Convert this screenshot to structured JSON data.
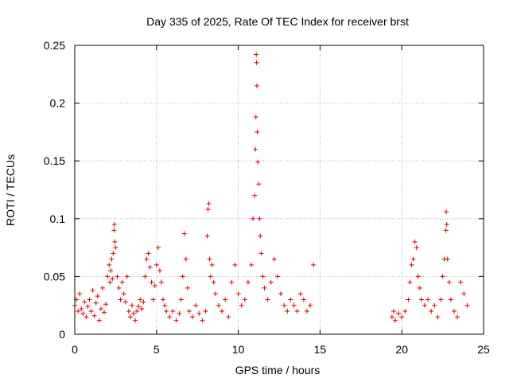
{
  "chart_data": {
    "type": "scatter",
    "title": "Day 335 of 2025, Rate Of TEC Index for receiver brst",
    "xlabel": "GPS time / hours",
    "ylabel": "ROTI / TECUs",
    "xlim": [
      0,
      25
    ],
    "ylim": [
      0,
      0.25
    ],
    "x_ticks": [
      {
        "value": 0,
        "label": "0"
      },
      {
        "value": 5,
        "label": "5"
      },
      {
        "value": 10,
        "label": "10"
      },
      {
        "value": 15,
        "label": "15"
      },
      {
        "value": 20,
        "label": "20"
      },
      {
        "value": 25,
        "label": "25"
      }
    ],
    "y_ticks": [
      {
        "value": 0,
        "label": "0"
      },
      {
        "value": 0.05,
        "label": "0.05"
      },
      {
        "value": 0.1,
        "label": "0.1"
      },
      {
        "value": 0.15,
        "label": "0.15"
      },
      {
        "value": 0.2,
        "label": "0.2"
      },
      {
        "value": 0.25,
        "label": "0.25"
      }
    ],
    "grid": true,
    "marker": "+",
    "marker_color": "#e00000",
    "series": [
      {
        "name": "ROTI",
        "points": [
          [
            0.0,
            0.025
          ],
          [
            0.1,
            0.03
          ],
          [
            0.2,
            0.02
          ],
          [
            0.3,
            0.035
          ],
          [
            0.4,
            0.022
          ],
          [
            0.5,
            0.018
          ],
          [
            0.6,
            0.028
          ],
          [
            0.7,
            0.015
          ],
          [
            0.8,
            0.024
          ],
          [
            0.9,
            0.03
          ],
          [
            1.0,
            0.02
          ],
          [
            1.1,
            0.038
          ],
          [
            1.2,
            0.016
          ],
          [
            1.3,
            0.027
          ],
          [
            1.4,
            0.033
          ],
          [
            1.5,
            0.012
          ],
          [
            1.6,
            0.022
          ],
          [
            1.7,
            0.04
          ],
          [
            1.8,
            0.019
          ],
          [
            1.9,
            0.026
          ],
          [
            2.0,
            0.05
          ],
          [
            2.1,
            0.06
          ],
          [
            2.15,
            0.045
          ],
          [
            2.2,
            0.055
          ],
          [
            2.25,
            0.065
          ],
          [
            2.3,
            0.048
          ],
          [
            2.35,
            0.07
          ],
          [
            2.4,
            0.09
          ],
          [
            2.42,
            0.095
          ],
          [
            2.45,
            0.08
          ],
          [
            2.5,
            0.075
          ],
          [
            2.6,
            0.05
          ],
          [
            2.7,
            0.04
          ],
          [
            2.8,
            0.03
          ],
          [
            2.9,
            0.045
          ],
          [
            3.0,
            0.035
          ],
          [
            3.1,
            0.028
          ],
          [
            3.2,
            0.05
          ],
          [
            3.3,
            0.02
          ],
          [
            3.4,
            0.015
          ],
          [
            3.5,
            0.025
          ],
          [
            3.6,
            0.018
          ],
          [
            3.7,
            0.012
          ],
          [
            3.8,
            0.02
          ],
          [
            3.9,
            0.024
          ],
          [
            4.0,
            0.03
          ],
          [
            4.1,
            0.022
          ],
          [
            4.2,
            0.028
          ],
          [
            4.3,
            0.05
          ],
          [
            4.4,
            0.065
          ],
          [
            4.5,
            0.07
          ],
          [
            4.6,
            0.058
          ],
          [
            4.7,
            0.045
          ],
          [
            4.8,
            0.03
          ],
          [
            4.9,
            0.042
          ],
          [
            5.0,
            0.06
          ],
          [
            5.1,
            0.075
          ],
          [
            5.2,
            0.055
          ],
          [
            5.3,
            0.045
          ],
          [
            5.4,
            0.03
          ],
          [
            5.5,
            0.025
          ],
          [
            5.6,
            0.02
          ],
          [
            5.8,
            0.015
          ],
          [
            6.0,
            0.02
          ],
          [
            6.2,
            0.012
          ],
          [
            6.4,
            0.018
          ],
          [
            6.5,
            0.03
          ],
          [
            6.6,
            0.05
          ],
          [
            6.7,
            0.087
          ],
          [
            6.8,
            0.065
          ],
          [
            6.9,
            0.04
          ],
          [
            7.0,
            0.02
          ],
          [
            7.2,
            0.015
          ],
          [
            7.4,
            0.025
          ],
          [
            7.6,
            0.018
          ],
          [
            7.8,
            0.012
          ],
          [
            8.0,
            0.02
          ],
          [
            8.1,
            0.085
          ],
          [
            8.15,
            0.108
          ],
          [
            8.2,
            0.113
          ],
          [
            8.25,
            0.065
          ],
          [
            8.3,
            0.05
          ],
          [
            8.4,
            0.06
          ],
          [
            8.5,
            0.045
          ],
          [
            8.6,
            0.035
          ],
          [
            8.8,
            0.025
          ],
          [
            9.0,
            0.02
          ],
          [
            9.2,
            0.03
          ],
          [
            9.4,
            0.015
          ],
          [
            9.6,
            0.045
          ],
          [
            9.8,
            0.06
          ],
          [
            10.0,
            0.035
          ],
          [
            10.2,
            0.025
          ],
          [
            10.4,
            0.03
          ],
          [
            10.6,
            0.045
          ],
          [
            10.8,
            0.06
          ],
          [
            10.9,
            0.1
          ],
          [
            11.0,
            0.12
          ],
          [
            11.05,
            0.16
          ],
          [
            11.08,
            0.188
          ],
          [
            11.1,
            0.242
          ],
          [
            11.12,
            0.235
          ],
          [
            11.14,
            0.215
          ],
          [
            11.16,
            0.175
          ],
          [
            11.2,
            0.149
          ],
          [
            11.25,
            0.13
          ],
          [
            11.3,
            0.1
          ],
          [
            11.35,
            0.085
          ],
          [
            11.4,
            0.07
          ],
          [
            11.5,
            0.05
          ],
          [
            11.6,
            0.04
          ],
          [
            11.8,
            0.03
          ],
          [
            12.0,
            0.045
          ],
          [
            12.2,
            0.065
          ],
          [
            12.4,
            0.05
          ],
          [
            12.6,
            0.035
          ],
          [
            12.8,
            0.025
          ],
          [
            13.0,
            0.02
          ],
          [
            13.2,
            0.03
          ],
          [
            13.4,
            0.025
          ],
          [
            13.6,
            0.02
          ],
          [
            13.8,
            0.035
          ],
          [
            14.0,
            0.03
          ],
          [
            14.2,
            0.02
          ],
          [
            14.4,
            0.025
          ],
          [
            14.6,
            0.06
          ],
          [
            19.4,
            0.015
          ],
          [
            19.5,
            0.02
          ],
          [
            19.6,
            0.012
          ],
          [
            19.8,
            0.018
          ],
          [
            20.0,
            0.015
          ],
          [
            20.2,
            0.02
          ],
          [
            20.4,
            0.03
          ],
          [
            20.5,
            0.045
          ],
          [
            20.6,
            0.06
          ],
          [
            20.7,
            0.065
          ],
          [
            20.8,
            0.08
          ],
          [
            20.9,
            0.075
          ],
          [
            21.0,
            0.05
          ],
          [
            21.1,
            0.04
          ],
          [
            21.2,
            0.03
          ],
          [
            21.4,
            0.025
          ],
          [
            21.6,
            0.03
          ],
          [
            21.8,
            0.02
          ],
          [
            22.0,
            0.025
          ],
          [
            22.2,
            0.015
          ],
          [
            22.4,
            0.03
          ],
          [
            22.5,
            0.05
          ],
          [
            22.6,
            0.065
          ],
          [
            22.7,
            0.09
          ],
          [
            22.72,
            0.106
          ],
          [
            22.75,
            0.095
          ],
          [
            22.8,
            0.065
          ],
          [
            22.9,
            0.045
          ],
          [
            23.0,
            0.03
          ],
          [
            23.2,
            0.02
          ],
          [
            23.4,
            0.015
          ],
          [
            23.6,
            0.045
          ],
          [
            23.8,
            0.035
          ],
          [
            24.0,
            0.025
          ]
        ]
      }
    ]
  }
}
